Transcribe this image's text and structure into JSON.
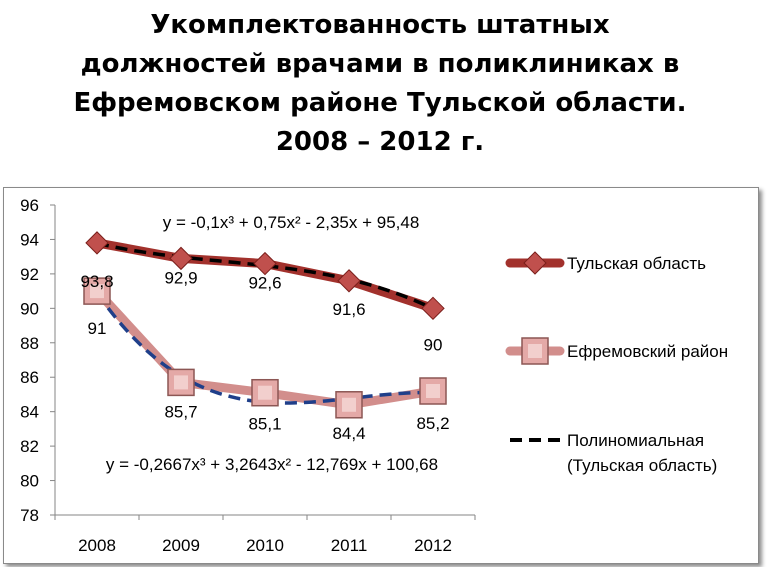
{
  "chart_data": {
    "type": "line",
    "title_lines": [
      "Укомплектованность штатных",
      "должностей врачами в поликлиниках в",
      "Ефремовском районе Тульской области.",
      "2008 – 2012 г."
    ],
    "categories": [
      "2008",
      "2009",
      "2010",
      "2011",
      "2012"
    ],
    "ylim": [
      78,
      96
    ],
    "yticks": [
      "96",
      "94",
      "92",
      "90",
      "88",
      "86",
      "84",
      "82",
      "80",
      "78"
    ],
    "grid": false,
    "legend_position": "right",
    "series": [
      {
        "name": "Тульская область",
        "values": [
          93.8,
          92.9,
          92.6,
          91.6,
          90
        ],
        "labels": [
          "93,8",
          "92,9",
          "92,6",
          "91,6",
          "90"
        ],
        "color": "#a2312c",
        "marker": "diamond"
      },
      {
        "name": "Ефремовский район",
        "values": [
          91,
          85.7,
          85.1,
          84.4,
          85.2
        ],
        "labels": [
          "91",
          "85,7",
          "85,1",
          "84,4",
          "85,2"
        ],
        "color": "#d28e8c",
        "marker": "square"
      }
    ],
    "trendlines": [
      {
        "name": "Полиномиальная",
        "name_line2": "(Тульская область)",
        "equation": "y = -0,1x³ + 0,75x² - 2,35x + 95,48",
        "coefficients": [
          -0.1,
          0.75,
          -2.35,
          95.48
        ],
        "color": "#000000"
      },
      {
        "equation": "y = -0,2667x³ + 3,2643x² - 12,769x + 100,68",
        "coefficients": [
          -0.2667,
          3.2643,
          -12.769,
          100.68
        ],
        "color": "#1f3f8a"
      }
    ]
  }
}
